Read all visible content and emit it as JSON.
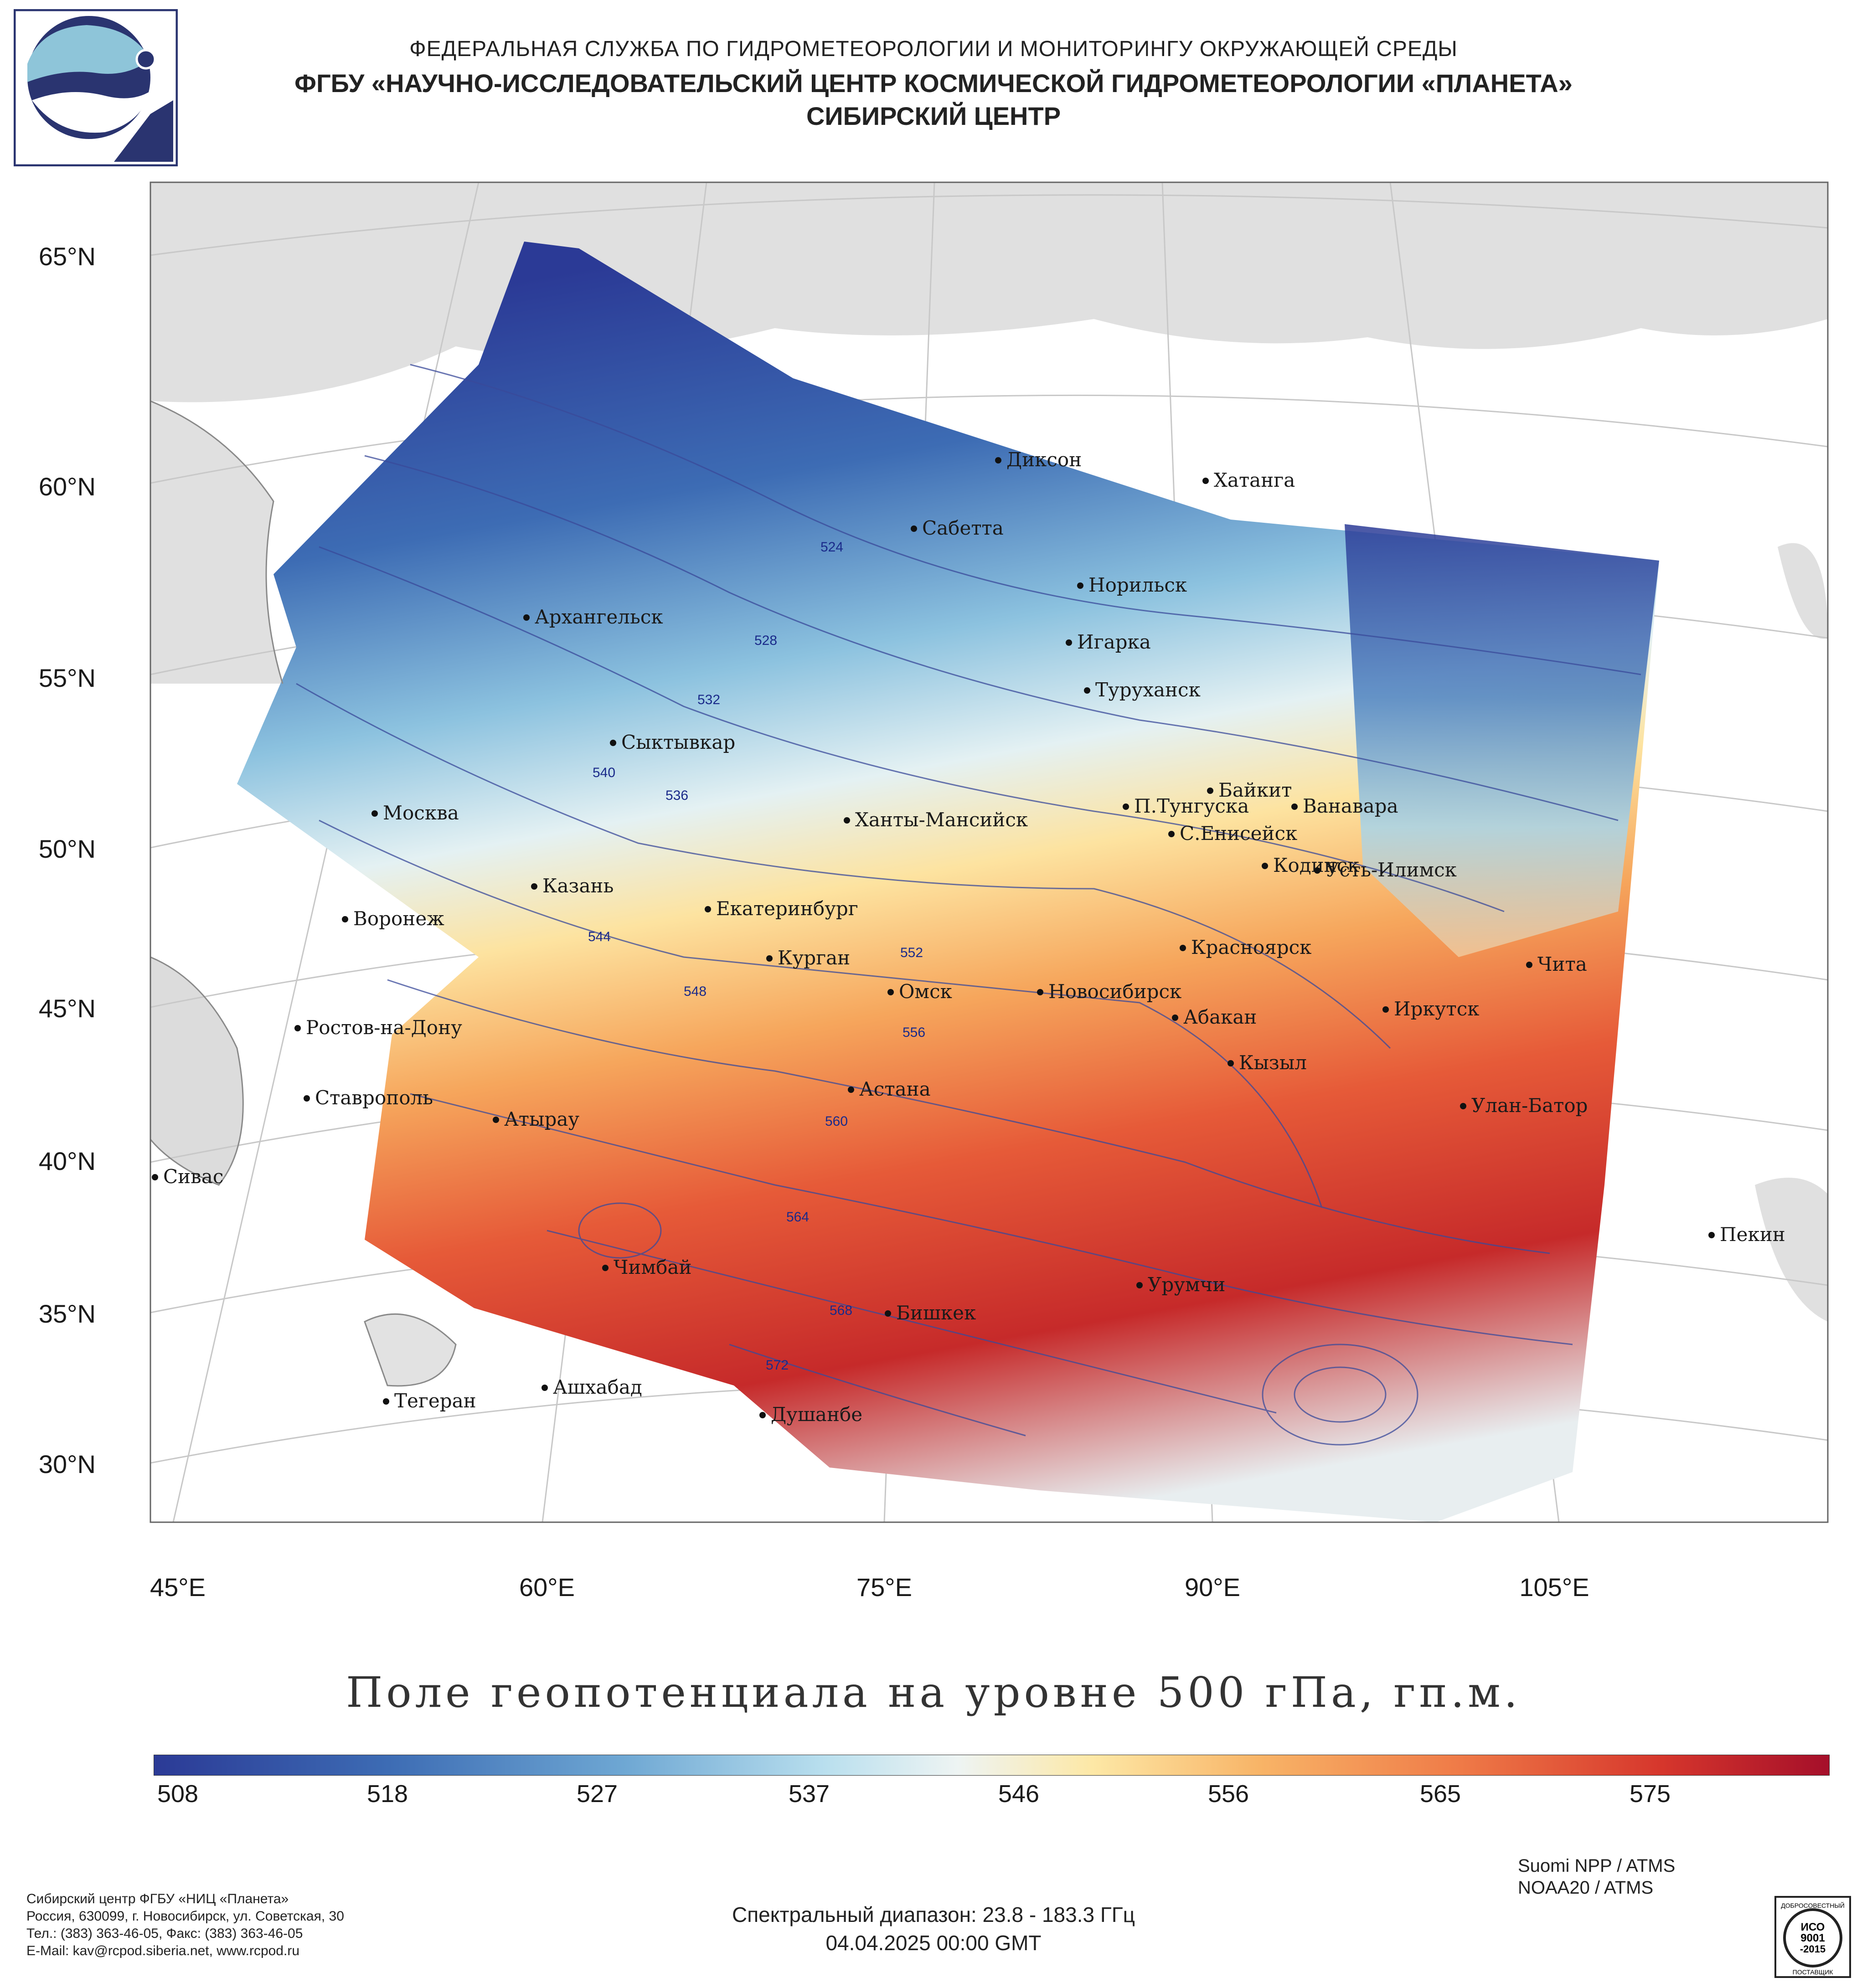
{
  "header": {
    "line1": "ФЕДЕРАЛЬНАЯ СЛУЖБА ПО ГИДРОМЕТЕОРОЛОГИИ И МОНИТОРИНГУ ОКРУЖАЮЩЕЙ СРЕДЫ",
    "line2": "ФГБУ «НАУЧНО-ИССЛЕДОВАТЕЛЬСКИЙ ЦЕНТР КОСМИЧЕСКОЙ ГИДРОМЕТЕОРОЛОГИИ «ПЛАНЕТА»",
    "line3": "СИБИРСКИЙ ЦЕНТР"
  },
  "map": {
    "lat_labels": [
      "65°N",
      "60°N",
      "55°N",
      "50°N",
      "45°N",
      "40°N",
      "35°N",
      "30°N"
    ],
    "lon_labels": [
      "45°E",
      "60°E",
      "75°E",
      "90°E",
      "105°E"
    ],
    "cities": [
      "Диксон",
      "Хатанга",
      "Сабетта",
      "Норильск",
      "Архангельск",
      "Игарка",
      "Туруханск",
      "Сыктывкар",
      "Байкит",
      "Москва",
      "П.Тунгуска",
      "Ванавара",
      "Ханты-Мансийск",
      "С.Енисейск",
      "Кодинск",
      "Усть-Илимск",
      "Казань",
      "Екатеринбург",
      "Воронеж",
      "Красноярск",
      "Курган",
      "Чита",
      "Омск",
      "Новосибирск",
      "Иркутск",
      "Ростов-на-Дону",
      "Абакан",
      "Кызыл",
      "Ставрополь",
      "Астана",
      "Атырау",
      "Улан-Батор",
      "Сивас",
      "Пекин",
      "Чимбай",
      "Урумчи",
      "Бишкек",
      "Ашхабад",
      "Тегеран",
      "Душанбе"
    ],
    "contour_labels": [
      "524",
      "528",
      "532",
      "536",
      "540",
      "544",
      "548",
      "552",
      "556",
      "560",
      "564",
      "568",
      "572"
    ]
  },
  "map_title": "Поле геопотенциала на уровне 500 гПа, гп.м.",
  "colorbar": {
    "ticks": [
      "508",
      "518",
      "527",
      "537",
      "546",
      "556",
      "565",
      "575"
    ],
    "colors": [
      "#2b3a96",
      "#6ea7d3",
      "#eef4f3",
      "#f8b467",
      "#d6362c",
      "#a50f2a"
    ]
  },
  "footer": {
    "org": "Сибирский центр ФГБУ «НИЦ «Планета»",
    "address": "Россия, 630099, г. Новосибирск, ул. Советская, 30",
    "phone": "Тел.: (383) 363-46-05, Факс: (383) 363-46-05",
    "email": "E-Mail: kav@rcpod.siberia.net, www.rcpod.ru",
    "sat1": "Suomi NPP / ATMS",
    "sat2": "NOAA20 / ATMS",
    "spectral": "Спектральный диапазон: 23.8 - 183.3 ГГц",
    "datetime": "04.04.2025 00:00 GMT",
    "iso_top": "ДОБРОСОВЕСТНЫЙ",
    "iso_mid1": "ИСО",
    "iso_mid2": "9001",
    "iso_mid3": "-2015",
    "iso_bottom": "ПОСТАВЩИК"
  }
}
